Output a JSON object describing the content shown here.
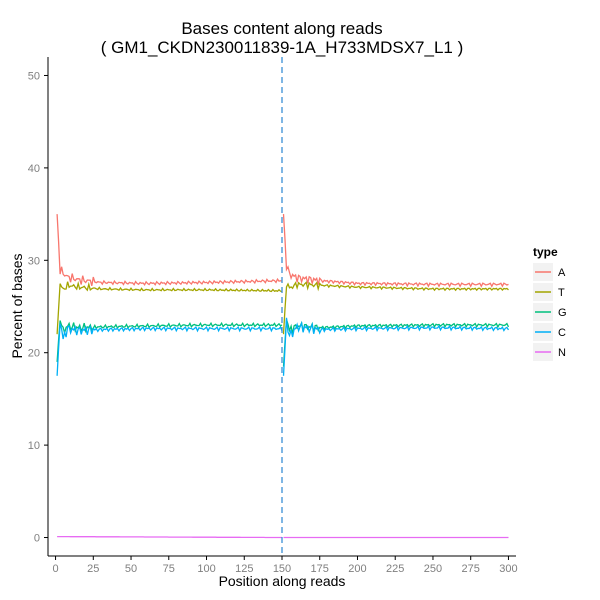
{
  "chart_data": {
    "type": "line",
    "title_line1": "Bases content along reads",
    "title_line2": "( GM1_CKDN230011839-1A_H733MDSX7_L1 )",
    "xlabel": "Position along reads",
    "ylabel": "Percent of bases",
    "xlim": [
      -5,
      305
    ],
    "ylim": [
      -2,
      52
    ],
    "x_ticks": [
      0,
      25,
      50,
      75,
      100,
      125,
      150,
      175,
      200,
      225,
      250,
      275,
      300
    ],
    "y_ticks": [
      0,
      10,
      20,
      30,
      40,
      50
    ],
    "grid": false,
    "read_boundary": 150,
    "legend": {
      "title": "type",
      "position": "right"
    },
    "series": [
      {
        "name": "A",
        "color": "#F8766D",
        "read1": {
          "start": 35.0,
          "knots": [
            [
              1,
              35.0
            ],
            [
              3,
              29.0
            ],
            [
              5,
              28.6
            ],
            [
              8,
              28.2
            ],
            [
              15,
              27.9
            ],
            [
              30,
              27.6
            ],
            [
              60,
              27.5
            ],
            [
              100,
              27.6
            ],
            [
              150,
              27.8
            ]
          ],
          "wobble": 0.35
        },
        "read2": {
          "knots": [
            [
              151,
              35.0
            ],
            [
              153,
              29.5
            ],
            [
              155,
              28.5
            ],
            [
              160,
              28.1
            ],
            [
              175,
              27.8
            ],
            [
              200,
              27.5
            ],
            [
              250,
              27.4
            ],
            [
              300,
              27.4
            ]
          ],
          "wobble": 0.35
        }
      },
      {
        "name": "T",
        "color": "#A3A500",
        "read1": {
          "knots": [
            [
              1,
              22.0
            ],
            [
              3,
              27.5
            ],
            [
              5,
              26.8
            ],
            [
              8,
              27.3
            ],
            [
              15,
              27.1
            ],
            [
              30,
              26.9
            ],
            [
              60,
              26.8
            ],
            [
              100,
              26.8
            ],
            [
              150,
              26.7
            ]
          ],
          "wobble": 0.25
        },
        "read2": {
          "knots": [
            [
              151,
              22.0
            ],
            [
              153,
              27.5
            ],
            [
              155,
              27.0
            ],
            [
              160,
              27.4
            ],
            [
              175,
              27.3
            ],
            [
              200,
              27.1
            ],
            [
              250,
              26.9
            ],
            [
              300,
              26.9
            ]
          ],
          "wobble": 0.25
        }
      },
      {
        "name": "G",
        "color": "#00BF7D",
        "read1": {
          "knots": [
            [
              1,
              19.0
            ],
            [
              3,
              23.8
            ],
            [
              5,
              22.3
            ],
            [
              8,
              22.9
            ],
            [
              15,
              22.7
            ],
            [
              30,
              22.8
            ],
            [
              60,
              22.9
            ],
            [
              100,
              23.0
            ],
            [
              150,
              23.0
            ]
          ],
          "wobble": 0.35
        },
        "read2": {
          "knots": [
            [
              151,
              18.5
            ],
            [
              153,
              23.8
            ],
            [
              155,
              22.4
            ],
            [
              160,
              22.9
            ],
            [
              175,
              22.7
            ],
            [
              200,
              22.9
            ],
            [
              250,
              23.0
            ],
            [
              300,
              23.0
            ]
          ],
          "wobble": 0.35
        }
      },
      {
        "name": "C",
        "color": "#00B0F6",
        "read1": {
          "knots": [
            [
              1,
              17.5
            ],
            [
              3,
              23.5
            ],
            [
              5,
              21.5
            ],
            [
              8,
              22.6
            ],
            [
              15,
              22.4
            ],
            [
              30,
              22.5
            ],
            [
              60,
              22.6
            ],
            [
              100,
              22.6
            ],
            [
              150,
              22.6
            ]
          ],
          "wobble": 0.4
        },
        "read2": {
          "knots": [
            [
              151,
              17.5
            ],
            [
              153,
              23.5
            ],
            [
              155,
              21.8
            ],
            [
              160,
              22.8
            ],
            [
              175,
              22.5
            ],
            [
              200,
              22.6
            ],
            [
              250,
              22.7
            ],
            [
              300,
              22.6
            ]
          ],
          "wobble": 0.4
        }
      },
      {
        "name": "N",
        "color": "#E76BF3",
        "read1": {
          "knots": [
            [
              1,
              0.1
            ],
            [
              150,
              0.0
            ]
          ],
          "wobble": 0
        },
        "read2": {
          "knots": [
            [
              151,
              0.0
            ],
            [
              300,
              0.0
            ]
          ],
          "wobble": 0
        }
      }
    ]
  }
}
